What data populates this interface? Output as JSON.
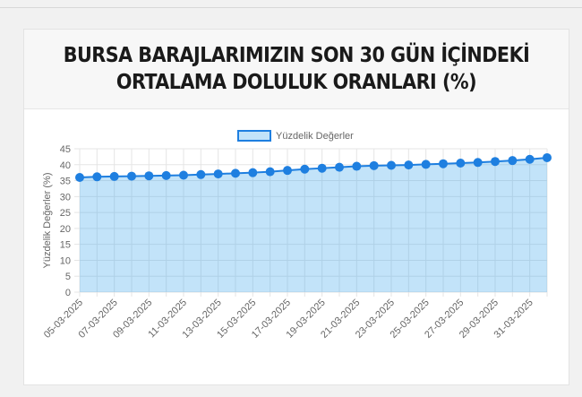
{
  "chart_data": {
    "type": "line",
    "title": [
      "BURSA BARAJLARIMIZIN SON 30 GÜN İÇİNDEKİ",
      "ORTALAMA DOLULUK ORANLARI (%)"
    ],
    "y_label": "Yüzdelik Değerler (%)",
    "categories": [
      "05-03-2025",
      null,
      "07-03-2025",
      null,
      "09-03-2025",
      null,
      "11-03-2025",
      null,
      "13-03-2025",
      null,
      "15-03-2025",
      null,
      "17-03-2025",
      null,
      "19-03-2025",
      null,
      "21-03-2025",
      null,
      "23-03-2025",
      null,
      "25-03-2025",
      null,
      "27-03-2025",
      null,
      "29-03-2025",
      null,
      "31-03-2025",
      null
    ],
    "series": [
      {
        "name": "Yüzdelik Değerler",
        "color": "#1e7fe0",
        "values": [
          36.0,
          36.2,
          36.3,
          36.4,
          36.5,
          36.6,
          36.7,
          36.9,
          37.1,
          37.3,
          37.5,
          37.8,
          38.2,
          38.6,
          38.9,
          39.2,
          39.5,
          39.7,
          39.8,
          39.9,
          40.1,
          40.3,
          40.5,
          40.7,
          41.0,
          41.3,
          41.7,
          42.2
        ]
      }
    ],
    "ylim": [
      0,
      45
    ],
    "yticks": [
      0,
      5,
      10,
      15,
      20,
      25,
      30,
      35,
      40,
      45
    ],
    "grid": true
  }
}
